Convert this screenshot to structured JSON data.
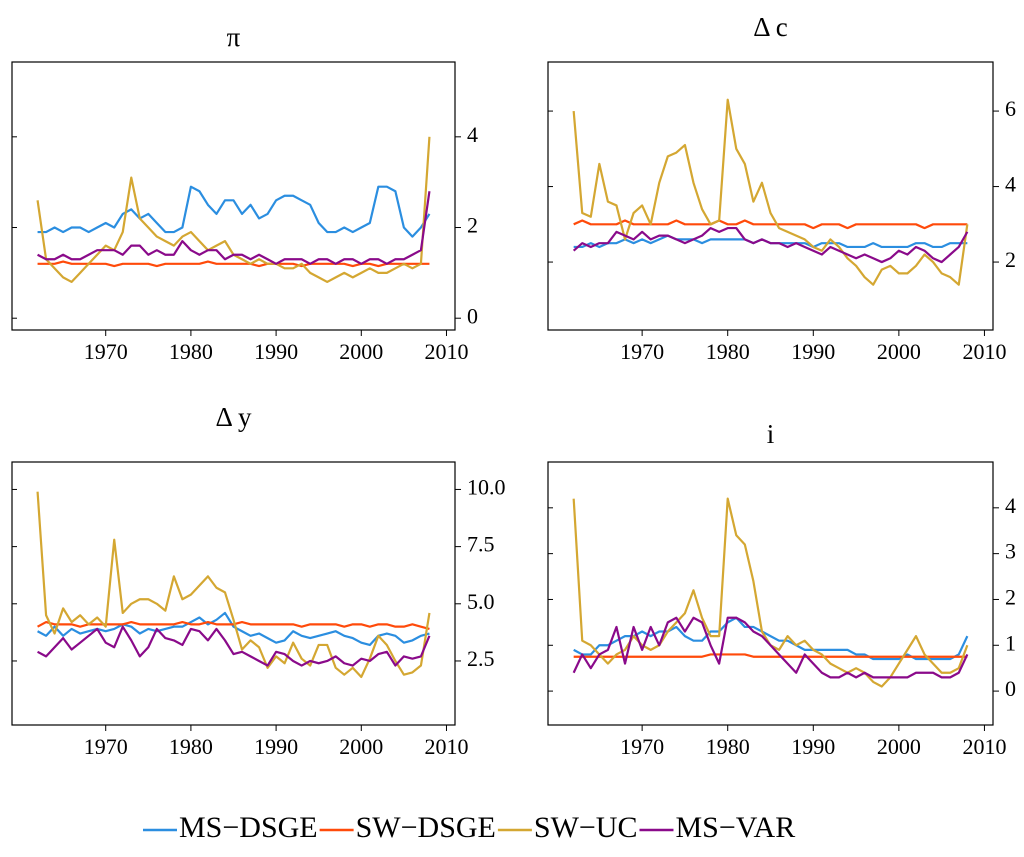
{
  "chart_data": [
    {
      "type": "line",
      "title": "π",
      "x": [
        1962,
        1963,
        1964,
        1965,
        1966,
        1967,
        1968,
        1969,
        1970,
        1971,
        1972,
        1973,
        1974,
        1975,
        1976,
        1977,
        1978,
        1979,
        1980,
        1981,
        1982,
        1983,
        1984,
        1985,
        1986,
        1987,
        1988,
        1989,
        1990,
        1991,
        1992,
        1993,
        1994,
        1995,
        1996,
        1997,
        1998,
        1999,
        2000,
        2001,
        2002,
        2003,
        2004,
        2005,
        2006,
        2007,
        2008
      ],
      "xlim": [
        1959,
        2011
      ],
      "xticks": [
        1970,
        1980,
        1990,
        2000,
        2010
      ],
      "ylim": [
        -0.26,
        5.65
      ],
      "yticks": [
        0,
        2,
        4
      ],
      "series": [
        {
          "name": "MS−DSGE",
          "color": "#2b8ee0",
          "values": [
            1.9,
            1.9,
            2.0,
            1.9,
            2.0,
            2.0,
            1.9,
            2.0,
            2.1,
            2.0,
            2.3,
            2.4,
            2.2,
            2.3,
            2.1,
            1.9,
            1.9,
            2.0,
            2.9,
            2.8,
            2.5,
            2.3,
            2.6,
            2.6,
            2.3,
            2.5,
            2.2,
            2.3,
            2.6,
            2.7,
            2.7,
            2.6,
            2.5,
            2.1,
            1.9,
            1.9,
            2.0,
            1.9,
            2.0,
            2.1,
            2.9,
            2.9,
            2.8,
            2.0,
            1.8,
            2.0,
            2.3
          ]
        },
        {
          "name": "SW−DSGE",
          "color": "#ff4a0a",
          "values": [
            1.2,
            1.2,
            1.2,
            1.25,
            1.2,
            1.2,
            1.2,
            1.2,
            1.2,
            1.15,
            1.2,
            1.2,
            1.2,
            1.2,
            1.15,
            1.2,
            1.2,
            1.2,
            1.2,
            1.2,
            1.25,
            1.2,
            1.2,
            1.2,
            1.2,
            1.2,
            1.15,
            1.2,
            1.2,
            1.2,
            1.2,
            1.15,
            1.2,
            1.2,
            1.2,
            1.2,
            1.2,
            1.15,
            1.2,
            1.2,
            1.15,
            1.2,
            1.2,
            1.2,
            1.2,
            1.2,
            1.2
          ]
        },
        {
          "name": "SW−UC",
          "color": "#d4a732",
          "values": [
            2.6,
            1.3,
            1.1,
            0.9,
            0.8,
            1.0,
            1.2,
            1.4,
            1.6,
            1.5,
            1.9,
            3.1,
            2.2,
            2.0,
            1.8,
            1.7,
            1.6,
            1.8,
            1.9,
            1.7,
            1.5,
            1.6,
            1.7,
            1.4,
            1.3,
            1.2,
            1.3,
            1.2,
            1.2,
            1.1,
            1.1,
            1.2,
            1.0,
            0.9,
            0.8,
            0.9,
            1.0,
            0.9,
            1.0,
            1.1,
            1.0,
            1.0,
            1.1,
            1.2,
            1.1,
            1.2,
            4.0
          ]
        },
        {
          "name": "MS−VAR",
          "color": "#8a0a8a",
          "values": [
            1.4,
            1.3,
            1.3,
            1.4,
            1.3,
            1.3,
            1.4,
            1.5,
            1.5,
            1.5,
            1.4,
            1.6,
            1.6,
            1.4,
            1.5,
            1.4,
            1.4,
            1.7,
            1.5,
            1.4,
            1.5,
            1.5,
            1.3,
            1.4,
            1.4,
            1.3,
            1.4,
            1.3,
            1.2,
            1.3,
            1.3,
            1.3,
            1.2,
            1.3,
            1.3,
            1.2,
            1.3,
            1.3,
            1.2,
            1.3,
            1.3,
            1.2,
            1.3,
            1.3,
            1.4,
            1.5,
            2.8
          ]
        }
      ]
    },
    {
      "type": "line",
      "title": "Δ c",
      "x": [
        1962,
        1963,
        1964,
        1965,
        1966,
        1967,
        1968,
        1969,
        1970,
        1971,
        1972,
        1973,
        1974,
        1975,
        1976,
        1977,
        1978,
        1979,
        1980,
        1981,
        1982,
        1983,
        1984,
        1985,
        1986,
        1987,
        1988,
        1989,
        1990,
        1991,
        1992,
        1993,
        1994,
        1995,
        1996,
        1997,
        1998,
        1999,
        2000,
        2001,
        2002,
        2003,
        2004,
        2005,
        2006,
        2007,
        2008
      ],
      "xlim": [
        1959,
        2011
      ],
      "xticks": [
        1970,
        1980,
        1990,
        2000,
        2010
      ],
      "ylim": [
        0.2,
        7.3
      ],
      "yticks": [
        2,
        4,
        6
      ],
      "series": [
        {
          "name": "MS−DSGE",
          "color": "#2b8ee0",
          "values": [
            2.4,
            2.4,
            2.5,
            2.4,
            2.5,
            2.5,
            2.6,
            2.5,
            2.6,
            2.5,
            2.6,
            2.7,
            2.6,
            2.6,
            2.6,
            2.5,
            2.6,
            2.6,
            2.6,
            2.6,
            2.6,
            2.5,
            2.6,
            2.5,
            2.5,
            2.5,
            2.5,
            2.5,
            2.4,
            2.5,
            2.5,
            2.5,
            2.4,
            2.4,
            2.4,
            2.5,
            2.4,
            2.4,
            2.4,
            2.4,
            2.5,
            2.5,
            2.4,
            2.4,
            2.5,
            2.5,
            2.5
          ]
        },
        {
          "name": "SW−DSGE",
          "color": "#ff4a0a",
          "values": [
            3.0,
            3.1,
            3.0,
            3.0,
            3.0,
            3.0,
            3.1,
            3.0,
            3.0,
            3.0,
            3.0,
            3.0,
            3.1,
            3.0,
            3.0,
            3.0,
            3.0,
            3.1,
            3.0,
            3.0,
            3.1,
            3.0,
            3.0,
            3.0,
            3.0,
            3.0,
            3.0,
            3.0,
            2.9,
            3.0,
            3.0,
            3.0,
            2.9,
            3.0,
            3.0,
            3.0,
            3.0,
            3.0,
            3.0,
            3.0,
            3.0,
            2.9,
            3.0,
            3.0,
            3.0,
            3.0,
            3.0
          ]
        },
        {
          "name": "SW−UC",
          "color": "#d4a732",
          "values": [
            6.0,
            3.3,
            3.2,
            4.6,
            3.6,
            3.5,
            2.6,
            3.3,
            3.5,
            3.0,
            4.1,
            4.8,
            4.9,
            5.1,
            4.1,
            3.4,
            3.0,
            3.1,
            6.3,
            5.0,
            4.6,
            3.6,
            4.1,
            3.3,
            2.9,
            2.8,
            2.7,
            2.6,
            2.4,
            2.3,
            2.6,
            2.4,
            2.1,
            1.9,
            1.6,
            1.4,
            1.8,
            1.9,
            1.7,
            1.7,
            1.9,
            2.2,
            2.0,
            1.7,
            1.6,
            1.4,
            3.0
          ]
        },
        {
          "name": "MS−VAR",
          "color": "#8a0a8a",
          "values": [
            2.3,
            2.5,
            2.4,
            2.5,
            2.5,
            2.8,
            2.7,
            2.6,
            2.8,
            2.6,
            2.7,
            2.7,
            2.6,
            2.5,
            2.6,
            2.7,
            2.9,
            2.8,
            2.9,
            2.9,
            2.6,
            2.5,
            2.6,
            2.5,
            2.5,
            2.4,
            2.5,
            2.4,
            2.3,
            2.2,
            2.4,
            2.3,
            2.2,
            2.1,
            2.2,
            2.1,
            2.0,
            2.1,
            2.3,
            2.2,
            2.4,
            2.3,
            2.1,
            2.0,
            2.2,
            2.4,
            2.8
          ]
        }
      ]
    },
    {
      "type": "line",
      "title": "Δ y",
      "x": [
        1962,
        1963,
        1964,
        1965,
        1966,
        1967,
        1968,
        1969,
        1970,
        1971,
        1972,
        1973,
        1974,
        1975,
        1976,
        1977,
        1978,
        1979,
        1980,
        1981,
        1982,
        1983,
        1984,
        1985,
        1986,
        1987,
        1988,
        1989,
        1990,
        1991,
        1992,
        1993,
        1994,
        1995,
        1996,
        1997,
        1998,
        1999,
        2000,
        2001,
        2002,
        2003,
        2004,
        2005,
        2006,
        2007,
        2008
      ],
      "xlim": [
        1959,
        2011
      ],
      "xticks": [
        1970,
        1980,
        1990,
        2000,
        2010
      ],
      "ylim": [
        -0.3,
        11.2
      ],
      "yticks": [
        2.5,
        {
          "value": 5,
          "label": "5.0"
        },
        7.5,
        {
          "value": 10,
          "label": "10.0"
        }
      ],
      "series": [
        {
          "name": "MS−DSGE",
          "color": "#2b8ee0",
          "values": [
            3.8,
            3.6,
            4.0,
            3.6,
            3.9,
            3.7,
            3.8,
            3.9,
            3.8,
            3.9,
            4.1,
            4.0,
            3.7,
            3.9,
            3.8,
            3.9,
            4.0,
            4.0,
            4.2,
            4.4,
            4.1,
            4.3,
            4.6,
            4.0,
            3.8,
            3.6,
            3.7,
            3.5,
            3.3,
            3.4,
            3.8,
            3.6,
            3.5,
            3.6,
            3.7,
            3.8,
            3.6,
            3.5,
            3.3,
            3.2,
            3.6,
            3.7,
            3.6,
            3.3,
            3.4,
            3.6,
            3.7
          ]
        },
        {
          "name": "SW−DSGE",
          "color": "#ff4a0a",
          "values": [
            4.0,
            4.2,
            4.1,
            4.1,
            4.1,
            4.0,
            4.1,
            4.1,
            4.1,
            4.1,
            4.1,
            4.2,
            4.1,
            4.1,
            4.1,
            4.1,
            4.1,
            4.2,
            4.1,
            4.1,
            4.2,
            4.1,
            4.1,
            4.1,
            4.2,
            4.1,
            4.1,
            4.1,
            4.1,
            4.1,
            4.1,
            4.0,
            4.1,
            4.1,
            4.1,
            4.1,
            4.0,
            4.1,
            4.1,
            4.0,
            4.1,
            4.1,
            4.0,
            4.0,
            4.1,
            4.0,
            3.9
          ]
        },
        {
          "name": "SW−UC",
          "color": "#d4a732",
          "values": [
            9.9,
            4.5,
            3.7,
            4.8,
            4.2,
            4.5,
            4.1,
            4.4,
            4.0,
            7.8,
            4.6,
            5.0,
            5.2,
            5.2,
            5.0,
            4.7,
            6.2,
            5.2,
            5.4,
            5.8,
            6.2,
            5.7,
            5.5,
            4.3,
            3.0,
            3.4,
            3.1,
            2.2,
            2.7,
            2.4,
            3.3,
            2.6,
            2.3,
            3.2,
            3.2,
            2.2,
            1.9,
            2.2,
            1.8,
            2.6,
            3.6,
            3.2,
            2.5,
            1.9,
            2.0,
            2.3,
            4.6
          ]
        },
        {
          "name": "MS−VAR",
          "color": "#8a0a8a",
          "values": [
            2.9,
            2.7,
            3.1,
            3.5,
            3.0,
            3.3,
            3.6,
            3.9,
            3.3,
            3.1,
            4.0,
            3.4,
            2.7,
            3.1,
            3.9,
            3.5,
            3.4,
            3.2,
            3.9,
            3.8,
            3.4,
            3.9,
            3.4,
            2.8,
            2.9,
            2.7,
            2.5,
            2.3,
            2.9,
            2.8,
            2.5,
            2.3,
            2.5,
            2.4,
            2.5,
            2.7,
            2.4,
            2.3,
            2.6,
            2.5,
            2.8,
            2.9,
            2.3,
            2.7,
            2.6,
            2.7,
            3.6
          ]
        }
      ]
    },
    {
      "type": "line",
      "title": "i",
      "x": [
        1962,
        1963,
        1964,
        1965,
        1966,
        1967,
        1968,
        1969,
        1970,
        1971,
        1972,
        1973,
        1974,
        1975,
        1976,
        1977,
        1978,
        1979,
        1980,
        1981,
        1982,
        1983,
        1984,
        1985,
        1986,
        1987,
        1988,
        1989,
        1990,
        1991,
        1992,
        1993,
        1994,
        1995,
        1996,
        1997,
        1998,
        1999,
        2000,
        2001,
        2002,
        2003,
        2004,
        2005,
        2006,
        2007,
        2008
      ],
      "xlim": [
        1959,
        2011
      ],
      "xticks": [
        1970,
        1980,
        1990,
        2000,
        2010
      ],
      "ylim": [
        -0.74,
        5.0
      ],
      "yticks": [
        0,
        1,
        2,
        3,
        4
      ],
      "series": [
        {
          "name": "MS−DSGE",
          "color": "#2b8ee0",
          "values": [
            0.9,
            0.8,
            0.8,
            1.0,
            1.0,
            1.1,
            1.2,
            1.2,
            1.3,
            1.2,
            1.3,
            1.3,
            1.4,
            1.2,
            1.1,
            1.1,
            1.3,
            1.3,
            1.5,
            1.6,
            1.4,
            1.4,
            1.3,
            1.2,
            1.1,
            1.1,
            1.0,
            0.9,
            0.9,
            0.9,
            0.9,
            0.9,
            0.9,
            0.8,
            0.8,
            0.7,
            0.7,
            0.7,
            0.7,
            0.8,
            0.7,
            0.7,
            0.7,
            0.7,
            0.7,
            0.8,
            1.2
          ]
        },
        {
          "name": "SW−DSGE",
          "color": "#ff4a0a",
          "values": [
            0.75,
            0.75,
            0.75,
            0.75,
            0.75,
            0.75,
            0.75,
            0.75,
            0.75,
            0.75,
            0.75,
            0.75,
            0.75,
            0.75,
            0.75,
            0.75,
            0.8,
            0.8,
            0.8,
            0.8,
            0.8,
            0.75,
            0.75,
            0.75,
            0.75,
            0.75,
            0.75,
            0.75,
            0.75,
            0.75,
            0.75,
            0.75,
            0.75,
            0.75,
            0.75,
            0.75,
            0.75,
            0.75,
            0.75,
            0.75,
            0.75,
            0.75,
            0.75,
            0.75,
            0.75,
            0.75,
            0.75
          ]
        },
        {
          "name": "SW−UC",
          "color": "#d4a732",
          "values": [
            4.2,
            1.1,
            1.0,
            0.8,
            0.6,
            0.8,
            0.9,
            1.2,
            1.0,
            0.9,
            1.0,
            1.3,
            1.5,
            1.7,
            2.2,
            1.6,
            1.2,
            1.2,
            4.2,
            3.4,
            3.2,
            2.4,
            1.3,
            1.0,
            0.9,
            1.2,
            1.0,
            1.1,
            0.9,
            0.8,
            0.6,
            0.5,
            0.4,
            0.5,
            0.4,
            0.2,
            0.1,
            0.3,
            0.6,
            0.9,
            1.2,
            0.8,
            0.6,
            0.4,
            0.4,
            0.5,
            1.0
          ]
        },
        {
          "name": "MS−VAR",
          "color": "#8a0a8a",
          "values": [
            0.4,
            0.8,
            0.5,
            0.8,
            0.9,
            1.4,
            0.6,
            1.4,
            0.9,
            1.4,
            1.0,
            1.5,
            1.6,
            1.3,
            1.6,
            1.5,
            1.0,
            0.6,
            1.6,
            1.6,
            1.5,
            1.3,
            1.2,
            1.0,
            0.8,
            0.6,
            0.4,
            0.8,
            0.6,
            0.4,
            0.3,
            0.3,
            0.4,
            0.3,
            0.4,
            0.3,
            0.3,
            0.3,
            0.3,
            0.3,
            0.4,
            0.4,
            0.4,
            0.3,
            0.3,
            0.4,
            0.8
          ]
        }
      ]
    }
  ]
}
